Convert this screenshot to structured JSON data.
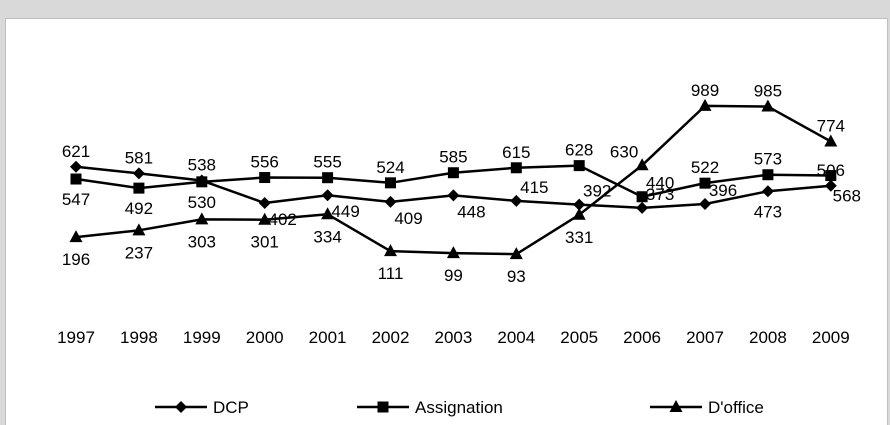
{
  "chart_data": {
    "type": "line",
    "title": "",
    "xlabel": "",
    "ylabel": "",
    "categories": [
      "1997",
      "1998",
      "1999",
      "2000",
      "2001",
      "2002",
      "2003",
      "2004",
      "2005",
      "2006",
      "2007",
      "2008",
      "2009"
    ],
    "ylim": [
      0,
      1100
    ],
    "grid": false,
    "legend_position": "bottom",
    "series": [
      {
        "name": "DCP",
        "marker": "diamond",
        "color": "#000000",
        "values": [
          621,
          581,
          538,
          402,
          449,
          409,
          448,
          415,
          392,
          373,
          396,
          473,
          506
        ]
      },
      {
        "name": "Assignation",
        "marker": "square",
        "color": "#000000",
        "values": [
          547,
          492,
          530,
          556,
          555,
          524,
          585,
          615,
          628,
          440,
          522,
          573,
          568
        ]
      },
      {
        "name": "D'office",
        "marker": "triangle",
        "color": "#000000",
        "values": [
          196,
          237,
          303,
          301,
          334,
          111,
          99,
          93,
          331,
          630,
          989,
          985,
          774
        ]
      }
    ]
  }
}
